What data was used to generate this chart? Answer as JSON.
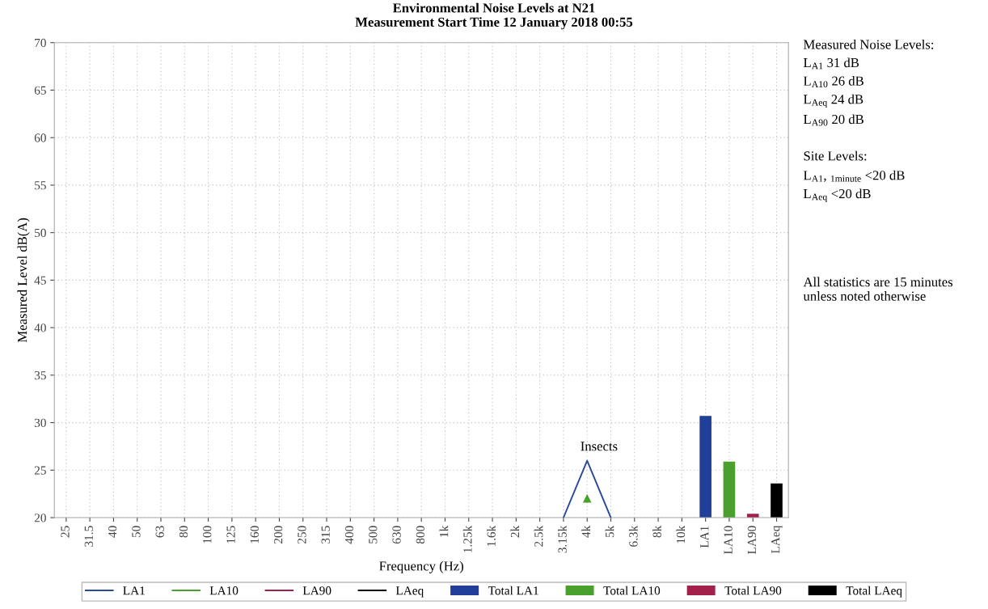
{
  "chart_data": {
    "type": "line",
    "title": "Environmental Noise Levels at N21\nMeasurement Start Time 12 January 2018 00:55",
    "xlabel": "Frequency (Hz)",
    "ylabel": "Measured Level dB(A)",
    "categories": [
      "25",
      "31.5",
      "40",
      "50",
      "63",
      "80",
      "100",
      "125",
      "160",
      "200",
      "250",
      "315",
      "400",
      "500",
      "630",
      "800",
      "1k",
      "1.25k",
      "1.6k",
      "2k",
      "2.5k",
      "3.15k",
      "4k",
      "5k",
      "6.3k",
      "8k",
      "10k",
      "LA1",
      "LA10",
      "LA90",
      "LAeq"
    ],
    "series": [
      {
        "name": "LA1",
        "color": "#2a4a9a",
        "values": [
          null,
          null,
          null,
          null,
          null,
          null,
          null,
          null,
          null,
          null,
          null,
          null,
          null,
          null,
          null,
          null,
          null,
          null,
          null,
          null,
          null,
          20,
          26,
          20,
          null,
          null,
          null,
          null,
          null,
          null,
          null
        ]
      },
      {
        "name": "LA10",
        "color": "#4aa02c",
        "marker": "triangle",
        "values": [
          null,
          null,
          null,
          null,
          null,
          null,
          null,
          null,
          null,
          null,
          null,
          null,
          null,
          null,
          null,
          null,
          null,
          null,
          null,
          null,
          null,
          null,
          22,
          null,
          null,
          null,
          null,
          null,
          null,
          null,
          null
        ]
      },
      {
        "name": "LA90",
        "color": "#a3204a",
        "values": [
          null,
          null,
          null,
          null,
          null,
          null,
          null,
          null,
          null,
          null,
          null,
          null,
          null,
          null,
          null,
          null,
          null,
          null,
          null,
          null,
          null,
          null,
          null,
          null,
          null,
          null,
          null,
          null,
          null,
          null,
          null
        ]
      },
      {
        "name": "LAeq",
        "color": "#000000",
        "values": [
          null,
          null,
          null,
          null,
          null,
          null,
          null,
          null,
          null,
          null,
          null,
          null,
          null,
          null,
          null,
          null,
          null,
          null,
          null,
          null,
          null,
          null,
          null,
          null,
          null,
          null,
          null,
          null,
          null,
          null,
          null
        ]
      },
      {
        "name": "Total LA1",
        "type": "bar",
        "color": "#1f3f99",
        "values": [
          null,
          null,
          null,
          null,
          null,
          null,
          null,
          null,
          null,
          null,
          null,
          null,
          null,
          null,
          null,
          null,
          null,
          null,
          null,
          null,
          null,
          null,
          null,
          null,
          null,
          null,
          null,
          30.7,
          null,
          null,
          null
        ]
      },
      {
        "name": "Total LA10",
        "type": "bar",
        "color": "#4aa02c",
        "values": [
          null,
          null,
          null,
          null,
          null,
          null,
          null,
          null,
          null,
          null,
          null,
          null,
          null,
          null,
          null,
          null,
          null,
          null,
          null,
          null,
          null,
          null,
          null,
          null,
          null,
          null,
          null,
          null,
          25.9,
          null,
          null
        ]
      },
      {
        "name": "Total LA90",
        "type": "bar",
        "color": "#a3204a",
        "values": [
          null,
          null,
          null,
          null,
          null,
          null,
          null,
          null,
          null,
          null,
          null,
          null,
          null,
          null,
          null,
          null,
          null,
          null,
          null,
          null,
          null,
          null,
          null,
          null,
          null,
          null,
          null,
          null,
          null,
          20.4,
          null
        ]
      },
      {
        "name": "Total LAeq",
        "type": "bar",
        "color": "#000000",
        "values": [
          null,
          null,
          null,
          null,
          null,
          null,
          null,
          null,
          null,
          null,
          null,
          null,
          null,
          null,
          null,
          null,
          null,
          null,
          null,
          null,
          null,
          null,
          null,
          null,
          null,
          null,
          null,
          null,
          null,
          null,
          23.6
        ]
      }
    ],
    "ylim": [
      20,
      70
    ],
    "yticks": [
      20,
      25,
      30,
      35,
      40,
      45,
      50,
      55,
      60,
      65,
      70
    ],
    "grid": true,
    "legend": "bottom",
    "marker": "none",
    "line_style": "solid",
    "annotations": [
      "Insects",
      "Measured Noise Levels:",
      "L$_{A1}$ 31 dB",
      "L$_{A10}$ 26 dB",
      "L$_{Aeq}$ 24 dB",
      "L$_{A90}$ 20 dB",
      "Site Levels:",
      "L$_{A1}$, $_{1minute}$ <20 dB",
      "L$_{Aeq}$ <20 dB",
      "All statistics are 15 minutes\nunless noted otherwise"
    ]
  }
}
